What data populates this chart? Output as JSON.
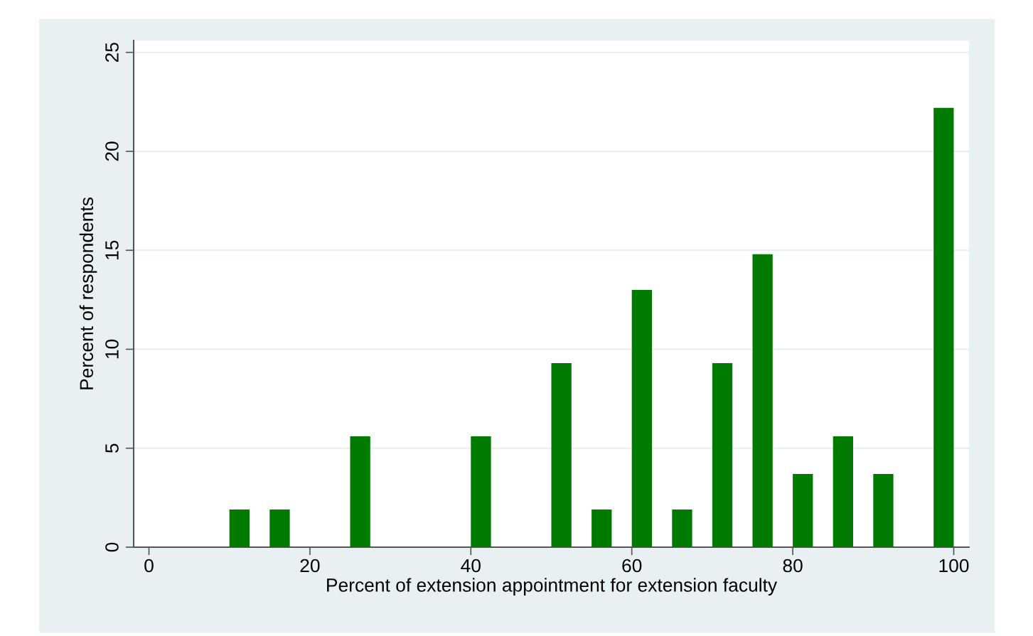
{
  "chart_data": {
    "type": "bar",
    "xlabel": "Percent of extension appointment for extension faculty",
    "ylabel": "Percent of respondents",
    "x": [
      11.25,
      16.25,
      26.25,
      41.25,
      51.25,
      56.25,
      61.25,
      66.25,
      71.25,
      76.25,
      81.25,
      86.25,
      91.25,
      98.75
    ],
    "values": [
      1.9,
      1.9,
      5.6,
      5.6,
      9.3,
      1.9,
      13.0,
      1.9,
      9.3,
      14.8,
      3.7,
      5.6,
      3.7,
      22.2
    ],
    "color": "#007a00",
    "xlim": [
      -1.9,
      101.9
    ],
    "xticks": [
      0,
      20,
      40,
      60,
      80,
      100
    ],
    "ylim": [
      0,
      25.6
    ],
    "yticks": [
      0,
      5,
      10,
      15,
      20,
      25
    ],
    "grid": "y"
  }
}
